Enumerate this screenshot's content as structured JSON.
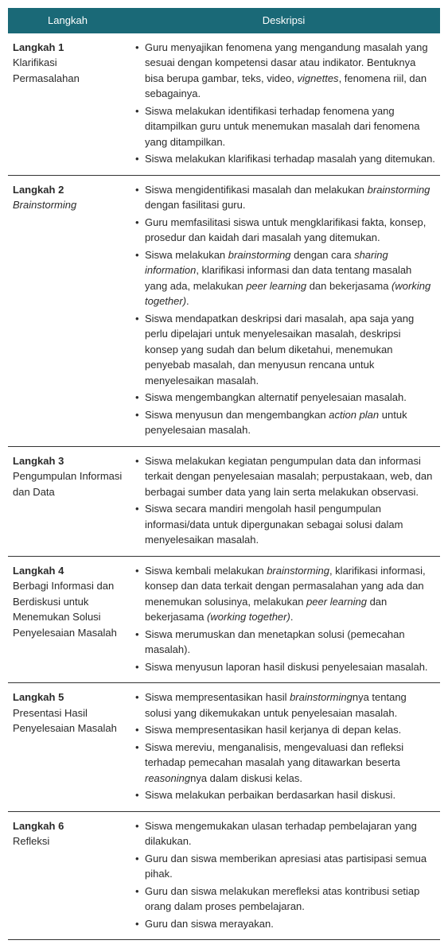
{
  "header": {
    "col1": "Langkah",
    "col2": "Deskripsi"
  },
  "rows": [
    {
      "step": "Langkah 1",
      "title": "Klarifikasi Permasalahan",
      "title_italic": false,
      "items": [
        "Guru menyajikan fenomena yang mengandung masalah yang sesuai dengan kompetensi dasar atau indikator. Bentuknya bisa berupa gambar, teks, video, <em>vignettes</em>, fenomena riil, dan sebagainya.",
        "Siswa melakukan identifikasi terhadap fenomena yang ditampilkan guru untuk menemukan masalah dari fenomena yang ditampilkan.",
        "Siswa melakukan klarifikasi terhadap masalah yang ditemukan."
      ]
    },
    {
      "step": "Langkah 2",
      "title": "Brainstorming",
      "title_italic": true,
      "items": [
        "Siswa mengidentifikasi masalah dan melakukan <em>brainstorming</em> dengan fasilitasi guru.",
        "Guru memfasilitasi siswa untuk mengklarifikasi fakta, konsep, prosedur dan kaidah dari masalah yang ditemukan.",
        "Siswa melakukan <em>brainstorming</em> dengan cara <em>sharing information</em>, klarifikasi informasi dan data tentang masalah yang ada, melakukan <em>peer learning</em> dan bekerjasama <em>(working together)</em>.",
        "Siswa mendapatkan deskripsi dari masalah, apa saja yang perlu dipelajari untuk menyelesaikan masalah, deskripsi konsep yang sudah dan belum diketahui, menemukan penyebab masalah, dan menyusun rencana untuk menyelesaikan masalah.",
        "Siswa mengembangkan alternatif penyelesaian masalah.",
        "Siswa menyusun dan mengembangkan <em>action plan</em> untuk penyelesaian masalah."
      ]
    },
    {
      "step": "Langkah 3",
      "title": "Pengumpulan Informasi dan Data",
      "title_italic": false,
      "items": [
        "Siswa melakukan kegiatan pengumpulan data dan informasi terkait dengan penyelesaian masalah; perpustakaan, web, dan berbagai sumber data yang lain serta melakukan observasi.",
        "Siswa secara mandiri mengolah hasil pengumpulan informasi/data untuk dipergunakan sebagai solusi dalam menyelesaikan masalah."
      ]
    },
    {
      "step": "Langkah 4",
      "title": "Berbagi Informasi dan Berdiskusi untuk Menemukan Solusi Penyelesaian Masalah",
      "title_italic": false,
      "items": [
        "Siswa kembali melakukan <em>brainstorming</em>, klarifikasi informasi, konsep dan data terkait dengan permasalahan yang ada dan menemukan solusinya, melakukan <em>peer learning</em> dan bekerjasama <em>(working together)</em>.",
        "Siswa merumuskan dan menetapkan solusi (pemecahan masalah).",
        "Siswa menyusun laporan hasil diskusi penyelesaian masalah."
      ]
    },
    {
      "step": "Langkah 5",
      "title": "Presentasi Hasil Penyelesaian Masalah",
      "title_italic": false,
      "items": [
        "Siswa mempresentasikan hasil <em>brainstorming</em>nya tentang solusi yang dikemukakan untuk penyelesaian masalah.",
        "Siswa mempresentasikan hasil kerjanya di depan kelas.",
        "Siswa mereviu, menganalisis, mengevaluasi dan refleksi terhadap pemecahan masalah yang ditawarkan beserta <em>reasoning</em>nya dalam diskusi kelas.",
        "Siswa melakukan perbaikan berdasarkan hasil diskusi."
      ]
    },
    {
      "step": "Langkah 6",
      "title": "Refleksi",
      "title_italic": false,
      "items": [
        "Siswa mengemukakan ulasan terhadap pembelajaran yang dilakukan.",
        "Guru dan siswa memberikan apresiasi atas partisipasi semua pihak.",
        "Guru dan siswa melakukan merefleksi atas kontribusi setiap orang dalam proses pembelajaran.",
        "Guru dan siswa merayakan."
      ]
    }
  ],
  "colors": {
    "header_bg": "#1a6977",
    "header_text": "#ffffff",
    "body_text": "#2a2a2a",
    "border": "#333333",
    "background": "#ffffff"
  },
  "fonts": {
    "body_size": 13,
    "line_height": 1.5
  }
}
